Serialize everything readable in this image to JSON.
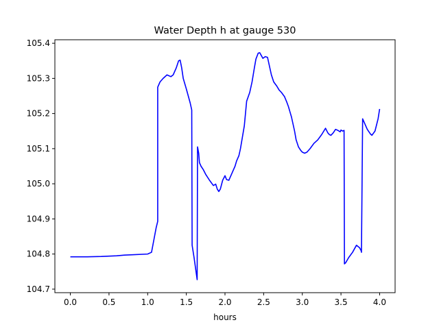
{
  "chart_data": {
    "type": "line",
    "title": "Water Depth h at gauge 530",
    "xlabel": "hours",
    "ylabel": "",
    "xlim": [
      -0.2,
      4.2
    ],
    "ylim": [
      104.69,
      105.41
    ],
    "xticks": [
      0.0,
      0.5,
      1.0,
      1.5,
      2.0,
      2.5,
      3.0,
      3.5,
      4.0
    ],
    "xtick_labels": [
      "0.0",
      "0.5",
      "1.0",
      "1.5",
      "2.0",
      "2.5",
      "3.0",
      "3.5",
      "4.0"
    ],
    "yticks": [
      104.7,
      104.8,
      104.9,
      105.0,
      105.1,
      105.2,
      105.3,
      105.4
    ],
    "ytick_labels": [
      "104.7",
      "104.8",
      "104.9",
      "105.0",
      "105.1",
      "105.2",
      "105.3",
      "105.4"
    ],
    "grid": false,
    "series": [
      {
        "color": "#0000ff",
        "x": [
          0.0,
          0.2,
          0.4,
          0.6,
          0.7,
          0.8,
          1.0,
          1.05,
          1.08,
          1.11,
          1.13,
          1.13,
          1.16,
          1.2,
          1.25,
          1.3,
          1.33,
          1.37,
          1.4,
          1.42,
          1.44,
          1.46,
          1.5,
          1.55,
          1.57,
          1.575,
          1.6,
          1.64,
          1.645,
          1.66,
          1.67,
          1.69,
          1.72,
          1.75,
          1.8,
          1.85,
          1.88,
          1.9,
          1.92,
          1.94,
          1.97,
          2.0,
          2.02,
          2.05,
          2.08,
          2.1,
          2.13,
          2.15,
          2.18,
          2.2,
          2.25,
          2.28,
          2.32,
          2.35,
          2.38,
          2.4,
          2.43,
          2.45,
          2.47,
          2.49,
          2.52,
          2.55,
          2.57,
          2.6,
          2.63,
          2.67,
          2.7,
          2.73,
          2.77,
          2.8,
          2.82,
          2.84,
          2.86,
          2.88,
          2.9,
          2.92,
          2.95,
          2.98,
          3.0,
          3.03,
          3.06,
          3.1,
          3.15,
          3.2,
          3.25,
          3.3,
          3.33,
          3.35,
          3.37,
          3.4,
          3.43,
          3.46,
          3.49,
          3.5,
          3.52,
          3.54,
          3.545,
          3.56,
          3.6,
          3.65,
          3.7,
          3.74,
          3.76,
          3.765,
          3.78,
          3.8,
          3.84,
          3.88,
          3.9,
          3.94,
          3.98,
          4.0
        ],
        "y": [
          104.792,
          104.792,
          104.793,
          104.795,
          104.797,
          104.798,
          104.8,
          104.805,
          104.84,
          104.875,
          104.893,
          105.275,
          105.29,
          105.3,
          105.31,
          105.305,
          105.31,
          105.33,
          105.35,
          105.352,
          105.33,
          105.3,
          105.27,
          105.23,
          105.21,
          104.825,
          104.79,
          104.727,
          105.105,
          105.087,
          105.06,
          105.05,
          105.04,
          105.027,
          105.01,
          104.995,
          104.999,
          104.985,
          104.978,
          104.985,
          105.01,
          105.023,
          105.012,
          105.01,
          105.025,
          105.035,
          105.05,
          105.065,
          105.08,
          105.1,
          105.165,
          105.235,
          105.26,
          105.29,
          105.33,
          105.355,
          105.372,
          105.373,
          105.365,
          105.357,
          105.362,
          105.36,
          105.34,
          105.31,
          105.29,
          105.278,
          105.267,
          105.26,
          105.248,
          105.232,
          105.22,
          105.205,
          105.19,
          105.17,
          105.15,
          105.125,
          105.105,
          105.095,
          105.09,
          105.087,
          105.09,
          105.1,
          105.115,
          105.125,
          105.14,
          105.158,
          105.145,
          105.14,
          105.138,
          105.145,
          105.155,
          105.152,
          105.148,
          105.153,
          105.15,
          105.152,
          104.772,
          104.775,
          104.79,
          104.805,
          104.825,
          104.818,
          104.81,
          104.805,
          105.185,
          105.175,
          105.155,
          105.142,
          105.138,
          105.15,
          105.185,
          105.213
        ]
      }
    ]
  }
}
